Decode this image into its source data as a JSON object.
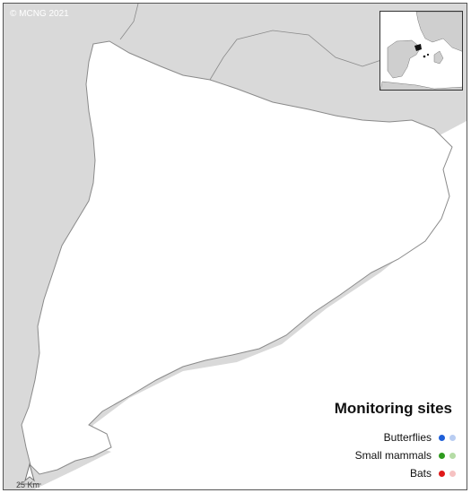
{
  "copyright": "© MCNG 2021",
  "legend": {
    "title": "Monitoring sites",
    "items": [
      {
        "label": "Butterflies",
        "color_strong": "#1f5fd8",
        "color_light": "#b9cdf2"
      },
      {
        "label": "Small mammals",
        "color_strong": "#2e9a1e",
        "color_light": "#b5dca6"
      },
      {
        "label": "Bats",
        "color_strong": "#e01818",
        "color_light": "#f6c2c2"
      }
    ]
  },
  "scale_bar": "25 Km",
  "north_arrow": "north-arrow-icon",
  "colors": {
    "land_outside": "#d9d9d9",
    "region": "#ffffff",
    "sea": "#ffffff",
    "border": "#8a8a8a",
    "inset_land": "#cfcfcf",
    "inset_highlight": "#111111"
  }
}
